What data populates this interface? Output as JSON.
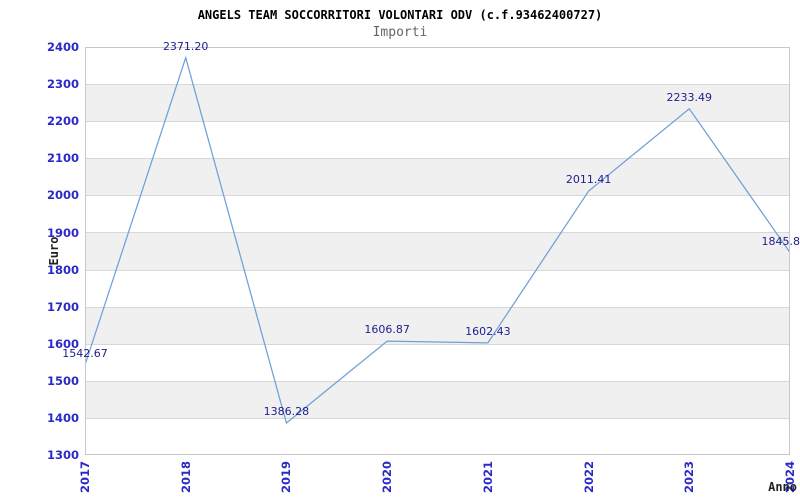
{
  "chart_data": {
    "type": "line",
    "title": "ANGELS TEAM SOCCORRITORI VOLONTARI ODV (c.f.93462400727)",
    "subtitle": "Importi",
    "xlabel": "Anno",
    "ylabel": "Euro",
    "x": [
      "2017",
      "2018",
      "2019",
      "2020",
      "2021",
      "2022",
      "2023",
      "2024"
    ],
    "series": [
      {
        "name": "Importi",
        "values": [
          1542.67,
          2371.2,
          1386.28,
          1606.87,
          1602.43,
          2011.41,
          2233.49,
          1845.8
        ],
        "point_labels": [
          "1542.67",
          "2371.20",
          "1386.28",
          "1606.87",
          "1602.43",
          "2011.41",
          "2233.49",
          "1845.8"
        ]
      }
    ],
    "ylim": [
      1300,
      2400
    ],
    "ytick_step": 100,
    "yticks": [
      1300,
      1400,
      1500,
      1600,
      1700,
      1800,
      1900,
      2000,
      2100,
      2200,
      2300,
      2400
    ],
    "grid": true,
    "legend": "none",
    "alternating_bands": true,
    "colors": {
      "line": "#6fa0d8",
      "tick_labels": "#2a2ac8",
      "point_labels": "#20208f",
      "band_gray": "#f0f0f0",
      "band_white": "#ffffff",
      "gridline": "#d8d8d8",
      "plot_border": "#c8c8c8",
      "title": "#000000",
      "subtitle": "#666666",
      "axis_titles": "#222222",
      "background": "#ffffff"
    }
  }
}
